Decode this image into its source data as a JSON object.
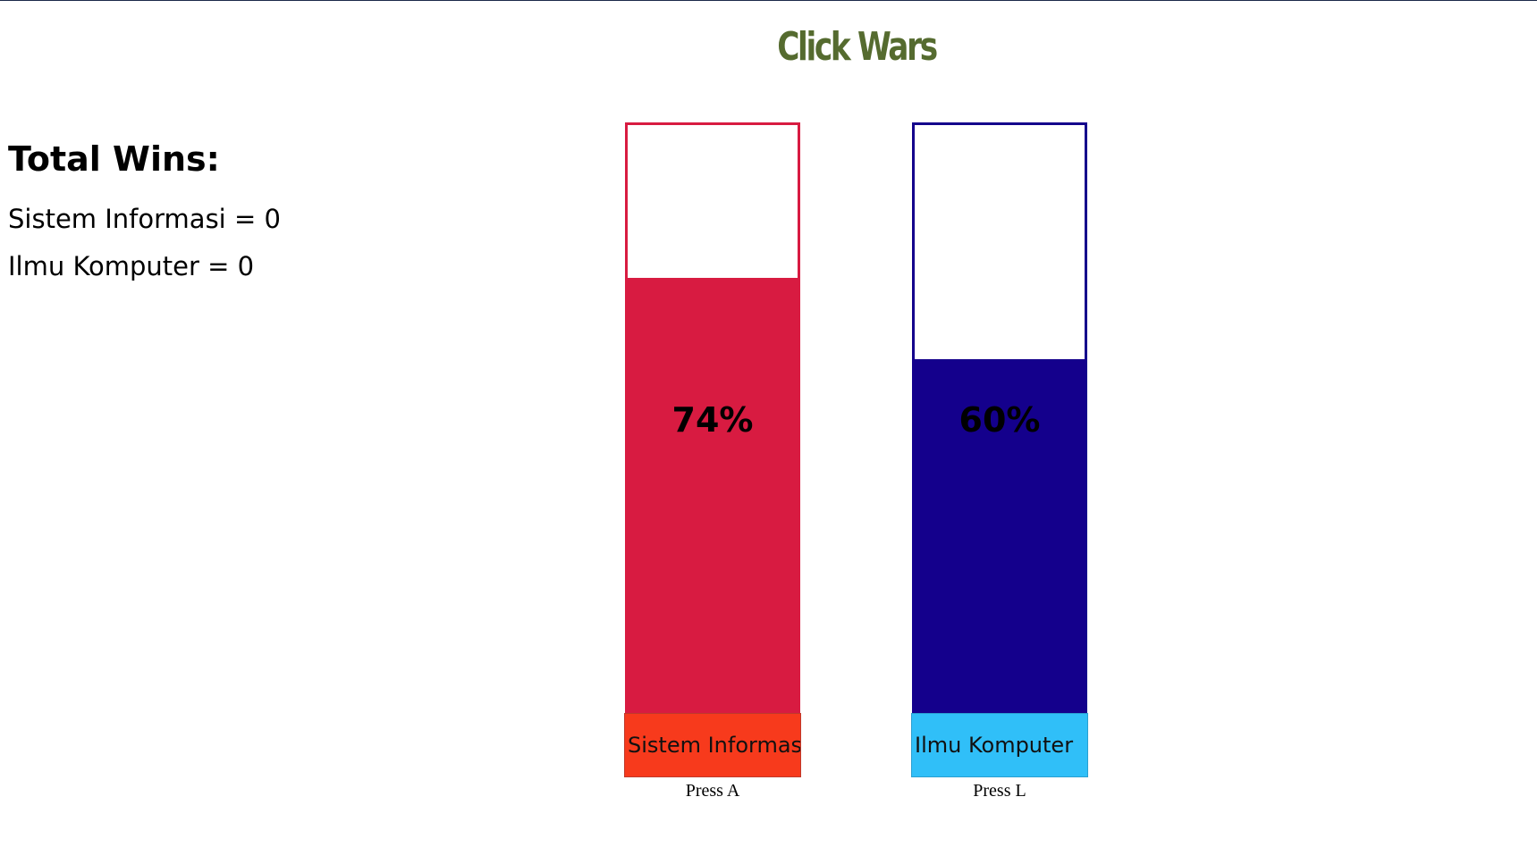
{
  "title": "Click Wars",
  "wins": {
    "heading": "Total Wins:",
    "entries": [
      "Sistem Informasi = 0",
      "Ilmu Komputer = 0"
    ]
  },
  "teams": [
    {
      "name": "Sistem Informasi",
      "percent": 74,
      "percent_label": "74%",
      "press_hint": "Press A",
      "border_color": "#d81b41",
      "fill_color": "#d81b41",
      "button_color": "#f73a1c"
    },
    {
      "name": "Ilmu Komputer",
      "percent": 60,
      "percent_label": "60%",
      "press_hint": "Press L",
      "border_color": "#14008c",
      "fill_color": "#14008c",
      "button_color": "#30bff8"
    }
  ],
  "colors": {
    "title": "#556b2f"
  }
}
